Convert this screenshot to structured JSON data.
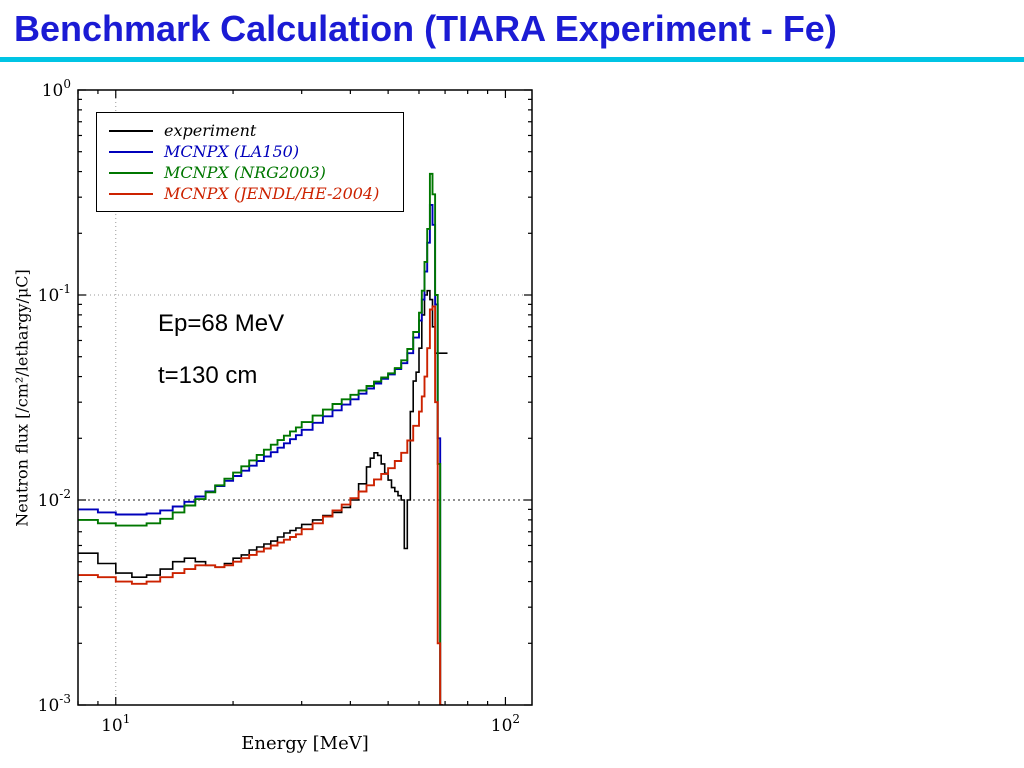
{
  "header": {
    "title": "Benchmark Calculation (TIARA Experiment - Fe)"
  },
  "colors": {
    "title": "#1b1bd4",
    "divider": "#00c4e4"
  },
  "chart_data": {
    "type": "line",
    "subtype": "step-histogram",
    "title": "",
    "xlabel": "Energy [MeV]",
    "ylabel": "Neutron flux [/cm²/lethargy/μC]",
    "x_scale": "log",
    "y_scale": "log",
    "xlim": [
      8,
      117
    ],
    "ylim": [
      0.001,
      1
    ],
    "grid": "partial-dotted",
    "legend_position": "top-left",
    "annotations": [
      "Ep=68 MeV",
      "t=130 cm"
    ],
    "x_ticks": [
      {
        "value": 10,
        "base": "10",
        "exp": "1"
      },
      {
        "value": 100,
        "base": "10",
        "exp": "2"
      }
    ],
    "y_ticks": [
      {
        "value": 1,
        "base": "10",
        "exp": "0"
      },
      {
        "value": 0.1,
        "base": "10",
        "exp": "-1"
      },
      {
        "value": 0.01,
        "base": "10",
        "exp": "-2"
      },
      {
        "value": 0.001,
        "base": "10",
        "exp": "-3"
      }
    ],
    "gridlines": [
      {
        "axis": "x",
        "value": 10,
        "color": "#9a9a9a",
        "dash": "1 3"
      },
      {
        "axis": "y",
        "value": 0.1,
        "color": "#9a9a9a",
        "dash": "1 3"
      },
      {
        "axis": "y",
        "value": 0.01,
        "color": "#222222",
        "dash": "2 3"
      }
    ],
    "series": [
      {
        "name": "experiment",
        "color": "#000000",
        "bin_edges": [
          8,
          9,
          10,
          11,
          12,
          13,
          14,
          15,
          16,
          17,
          18,
          19,
          20,
          21,
          22,
          23,
          24,
          25,
          26,
          27,
          28,
          29,
          30,
          32,
          34,
          36,
          38,
          40,
          42,
          44,
          45,
          46,
          47,
          48,
          49,
          50,
          51,
          52,
          53,
          54,
          55,
          56,
          57,
          58,
          59,
          60,
          61,
          62,
          63,
          64,
          65,
          66,
          71
        ],
        "values": [
          0.0055,
          0.0049,
          0.0044,
          0.0042,
          0.0043,
          0.0046,
          0.005,
          0.0052,
          0.005,
          0.0048,
          0.0047,
          0.0049,
          0.0052,
          0.0054,
          0.0057,
          0.0059,
          0.0061,
          0.0063,
          0.0066,
          0.0069,
          0.0071,
          0.0073,
          0.0076,
          0.008,
          0.0084,
          0.0087,
          0.0092,
          0.01,
          0.012,
          0.0145,
          0.016,
          0.017,
          0.0165,
          0.015,
          0.0135,
          0.0125,
          0.0115,
          0.011,
          0.0105,
          0.01,
          0.0058,
          0.01,
          0.027,
          0.038,
          0.042,
          0.055,
          0.08,
          0.1,
          0.105,
          0.095,
          0.07,
          0.052
        ]
      },
      {
        "name": "MCNPX (LA150)",
        "color": "#0000bb",
        "bin_edges": [
          8,
          9,
          10,
          11,
          12,
          13,
          14,
          15,
          16,
          17,
          18,
          19,
          20,
          21,
          22,
          23,
          24,
          25,
          26,
          27,
          28,
          29,
          30,
          32,
          34,
          36,
          38,
          40,
          42,
          44,
          46,
          48,
          50,
          52,
          54,
          56,
          58,
          60,
          61,
          62,
          63,
          64,
          65,
          66,
          67,
          68,
          69
        ],
        "values": [
          0.009,
          0.0087,
          0.0085,
          0.0085,
          0.0086,
          0.0089,
          0.0093,
          0.0098,
          0.0104,
          0.011,
          0.0117,
          0.0124,
          0.0131,
          0.0139,
          0.0147,
          0.0155,
          0.0163,
          0.0171,
          0.018,
          0.0189,
          0.0198,
          0.0207,
          0.022,
          0.0238,
          0.0256,
          0.0274,
          0.0292,
          0.031,
          0.033,
          0.035,
          0.037,
          0.039,
          0.041,
          0.0435,
          0.0465,
          0.052,
          0.062,
          0.075,
          0.095,
          0.13,
          0.18,
          0.275,
          0.22,
          0.09,
          0.02,
          0.0008
        ]
      },
      {
        "name": "MCNPX (NRG2003)",
        "color": "#007700",
        "bin_edges": [
          8,
          9,
          10,
          11,
          12,
          13,
          14,
          15,
          16,
          17,
          18,
          19,
          20,
          21,
          22,
          23,
          24,
          25,
          26,
          27,
          28,
          29,
          30,
          32,
          34,
          36,
          38,
          40,
          42,
          44,
          46,
          48,
          50,
          52,
          54,
          56,
          58,
          60,
          61,
          62,
          63,
          64,
          65,
          66,
          67,
          68,
          69
        ],
        "values": [
          0.008,
          0.0077,
          0.0075,
          0.0075,
          0.0077,
          0.0081,
          0.0087,
          0.0094,
          0.0101,
          0.0109,
          0.0118,
          0.0127,
          0.0136,
          0.0146,
          0.0156,
          0.0166,
          0.0176,
          0.0186,
          0.0196,
          0.0206,
          0.0216,
          0.0226,
          0.024,
          0.0258,
          0.0276,
          0.0294,
          0.031,
          0.0326,
          0.0342,
          0.036,
          0.0378,
          0.0396,
          0.0415,
          0.044,
          0.048,
          0.0545,
          0.066,
          0.082,
          0.105,
          0.145,
          0.21,
          0.39,
          0.31,
          0.1,
          0.015,
          0.0006
        ]
      },
      {
        "name": "MCNPX (JENDL/HE-2004)",
        "color": "#cc2200",
        "bin_edges": [
          8,
          9,
          10,
          11,
          12,
          13,
          14,
          15,
          16,
          17,
          18,
          19,
          20,
          21,
          22,
          23,
          24,
          25,
          26,
          27,
          28,
          29,
          30,
          32,
          34,
          36,
          38,
          40,
          42,
          44,
          46,
          48,
          50,
          52,
          54,
          56,
          58,
          60,
          61,
          62,
          63,
          64,
          65,
          66,
          67,
          68,
          69
        ],
        "values": [
          0.0043,
          0.0042,
          0.004,
          0.0039,
          0.004,
          0.0042,
          0.0044,
          0.0046,
          0.0048,
          0.0048,
          0.0047,
          0.0048,
          0.005,
          0.0052,
          0.0054,
          0.0056,
          0.0058,
          0.006,
          0.0062,
          0.0064,
          0.0066,
          0.0068,
          0.0072,
          0.0077,
          0.0083,
          0.0089,
          0.0095,
          0.0102,
          0.011,
          0.0118,
          0.0126,
          0.0134,
          0.0143,
          0.0155,
          0.017,
          0.0195,
          0.023,
          0.027,
          0.032,
          0.04,
          0.055,
          0.085,
          0.088,
          0.03,
          0.002,
          0.0005
        ]
      }
    ]
  }
}
